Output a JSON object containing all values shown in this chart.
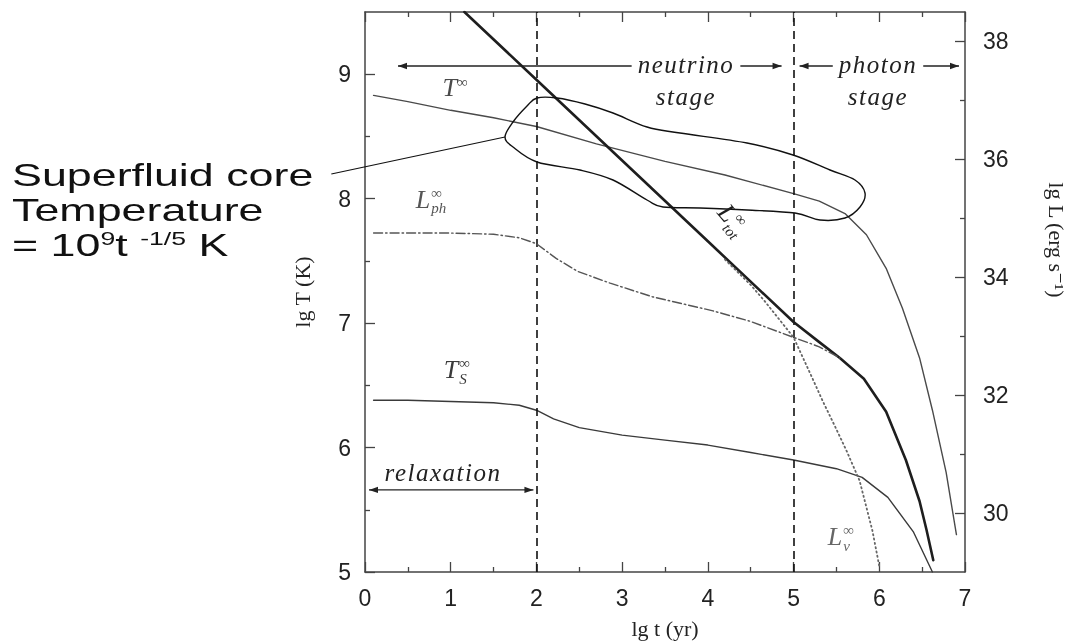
{
  "chart_data": {
    "type": "line",
    "xlabel": "lg t (yr)",
    "ylabel": "lg T (K)",
    "y2label": "lg L (erg s⁻¹)",
    "xlim": [
      0,
      7
    ],
    "xticks": [
      0,
      {
        "value": 0.5,
        "label": null
      },
      1,
      {
        "value": 1.5,
        "label": null
      },
      2,
      {
        "value": 2.5,
        "label": null
      },
      3,
      {
        "value": 3.5,
        "label": null
      },
      4,
      {
        "value": 4.5,
        "label": null
      },
      5,
      {
        "value": 5.5,
        "label": null
      },
      6,
      {
        "value": 6.5,
        "label": null
      },
      7
    ],
    "ylim": [
      5,
      9.5
    ],
    "yticks": [
      5,
      {
        "value": 5.5,
        "label": null
      },
      6,
      {
        "value": 6.5,
        "label": null
      },
      7,
      {
        "value": 7.5,
        "label": null
      },
      8,
      {
        "value": 8.5,
        "label": null
      },
      9
    ],
    "y2lim": [
      29,
      38.5
    ],
    "y2ticks": [
      30,
      {
        "value": 31,
        "label": null
      },
      32,
      {
        "value": 33,
        "label": null
      },
      34,
      {
        "value": 35,
        "label": null
      },
      36,
      {
        "value": 37,
        "label": null
      },
      38
    ],
    "series": [
      {
        "name": "T$^{∞}$",
        "color": "#4a4a4a",
        "line_style": "solid",
        "x": [
          0.1,
          0.5,
          1,
          1.5,
          2,
          2.7,
          3.5,
          4.2,
          5,
          5.3,
          5.6,
          5.85,
          6.08,
          6.27,
          6.47,
          6.62,
          6.78,
          6.9
        ],
        "values": [
          8.83,
          8.78,
          8.71,
          8.65,
          8.58,
          8.44,
          8.3,
          8.19,
          8.04,
          7.98,
          7.88,
          7.71,
          7.44,
          7.12,
          6.72,
          6.3,
          5.8,
          5.3
        ]
      },
      {
        "name": "T$_{S}$$^{∞}$",
        "color": "#3a3a3a",
        "line_style": "solid",
        "x": [
          0.1,
          0.5,
          1,
          1.5,
          1.8,
          2,
          2.2,
          2.5,
          3,
          3.5,
          4,
          4.5,
          5,
          5.5,
          5.8,
          6.1,
          6.4,
          6.62
        ],
        "values": [
          6.38,
          6.38,
          6.37,
          6.36,
          6.34,
          6.3,
          6.23,
          6.16,
          6.1,
          6.06,
          6.02,
          5.96,
          5.9,
          5.83,
          5.76,
          5.6,
          5.32,
          5.0
        ]
      },
      {
        "name": "L$_{tot}$$^{∞}$",
        "axis": "y2",
        "color": "#1e1e1e",
        "line_style": "solid",
        "x": [
          1.16,
          2,
          3,
          4,
          5,
          5.3,
          5.54,
          5.82,
          6.08,
          6.31,
          6.47,
          6.55,
          6.63
        ],
        "values": [
          38.5,
          37.35,
          35.98,
          34.61,
          33.24,
          32.9,
          32.63,
          32.28,
          31.72,
          30.9,
          30.2,
          29.72,
          29.2
        ]
      },
      {
        "name": "L$_{ph}$$^{∞}$",
        "axis": "y2",
        "color": "#555555",
        "line_style": "dashdot",
        "x": [
          0.1,
          0.5,
          1,
          1.5,
          1.8,
          2,
          2.23,
          2.48,
          2.86,
          3.35,
          4.06,
          4.5,
          5,
          5.3,
          5.54
        ],
        "values": [
          34.75,
          34.75,
          34.75,
          34.73,
          34.67,
          34.57,
          34.32,
          34.1,
          33.9,
          33.67,
          33.43,
          33.25,
          32.98,
          32.82,
          32.63
        ]
      },
      {
        "name": "L$_{ν}$$^{∞}$",
        "axis": "y2",
        "color": "#666666",
        "line_style": "dotted",
        "x": [
          4.2,
          4.5,
          4.66,
          5,
          5.2,
          5.34,
          5.5,
          5.62,
          5.77,
          5.92,
          6.0
        ],
        "values": [
          34.3,
          33.87,
          33.6,
          32.98,
          32.35,
          31.9,
          31.42,
          31.05,
          30.55,
          29.7,
          29.1
        ]
      }
    ],
    "ref_lines": [
      {
        "axis": "x",
        "value": 2,
        "color": "#111111",
        "line_style": "dashed"
      },
      {
        "axis": "x",
        "value": 5,
        "color": "#111111",
        "line_style": "dashed"
      }
    ],
    "annotations": [
      "neutrino stage",
      "photon stage",
      "relaxation",
      "Superfluid core\nTemperature\n= 10$^{9}$t $^{-1/5}$ K"
    ],
    "marker": "none",
    "grid": false,
    "legend": false
  }
}
